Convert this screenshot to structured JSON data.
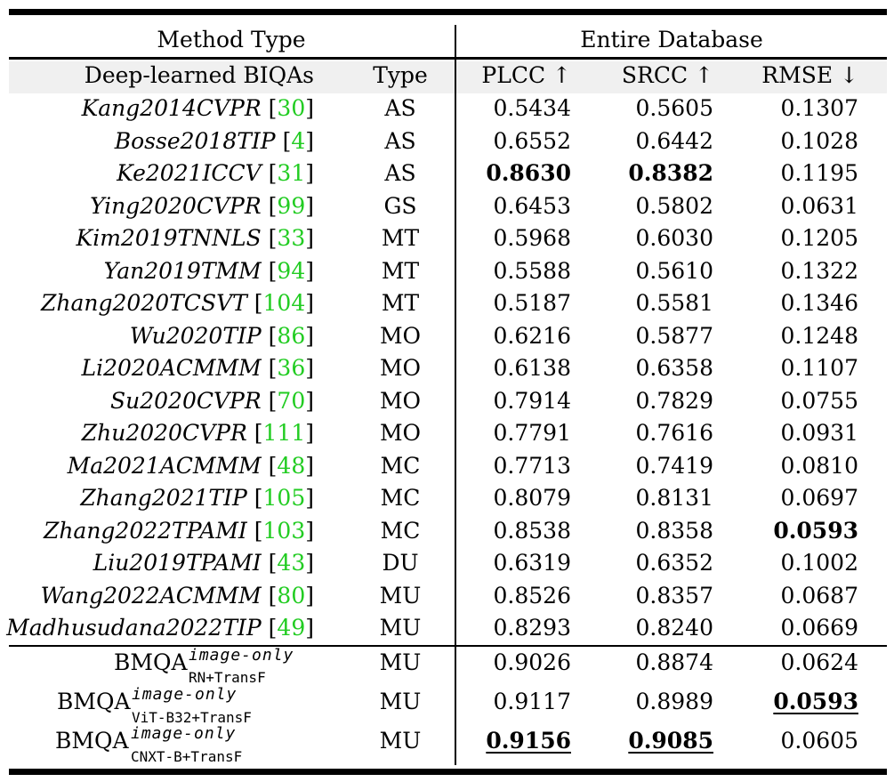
{
  "header": {
    "group_left": "Method Type",
    "group_right": "Entire Database",
    "col_method": "Deep-learned BIQAs",
    "col_type": "Type",
    "col_plcc": "PLCC ↑",
    "col_srcc": "SRCC ↑",
    "col_rmse": "RMSE ↓"
  },
  "rows": [
    {
      "name": "Kang2014CVPR",
      "cite": "30",
      "type": "AS",
      "plcc": "0.5434",
      "srcc": "0.5605",
      "rmse": "0.1307"
    },
    {
      "name": "Bosse2018TIP",
      "cite": "4",
      "type": "AS",
      "plcc": "0.6552",
      "srcc": "0.6442",
      "rmse": "0.1028"
    },
    {
      "name": "Ke2021ICCV",
      "cite": "31",
      "type": "AS",
      "plcc": "0.8630",
      "srcc": "0.8382",
      "rmse": "0.1195"
    },
    {
      "name": "Ying2020CVPR",
      "cite": "99",
      "type": "GS",
      "plcc": "0.6453",
      "srcc": "0.5802",
      "rmse": "0.0631"
    },
    {
      "name": "Kim2019TNNLS",
      "cite": "33",
      "type": "MT",
      "plcc": "0.5968",
      "srcc": "0.6030",
      "rmse": "0.1205"
    },
    {
      "name": "Yan2019TMM",
      "cite": "94",
      "type": "MT",
      "plcc": "0.5588",
      "srcc": "0.5610",
      "rmse": "0.1322"
    },
    {
      "name": "Zhang2020TCSVT",
      "cite": "104",
      "type": "MT",
      "plcc": "0.5187",
      "srcc": "0.5581",
      "rmse": "0.1346"
    },
    {
      "name": "Wu2020TIP",
      "cite": "86",
      "type": "MO",
      "plcc": "0.6216",
      "srcc": "0.5877",
      "rmse": "0.1248"
    },
    {
      "name": "Li2020ACMMM",
      "cite": "36",
      "type": "MO",
      "plcc": "0.6138",
      "srcc": "0.6358",
      "rmse": "0.1107"
    },
    {
      "name": "Su2020CVPR",
      "cite": "70",
      "type": "MO",
      "plcc": "0.7914",
      "srcc": "0.7829",
      "rmse": "0.0755"
    },
    {
      "name": "Zhu2020CVPR",
      "cite": "111",
      "type": "MO",
      "plcc": "0.7791",
      "srcc": "0.7616",
      "rmse": "0.0931"
    },
    {
      "name": "Ma2021ACMMM",
      "cite": "48",
      "type": "MC",
      "plcc": "0.7713",
      "srcc": "0.7419",
      "rmse": "0.0810"
    },
    {
      "name": "Zhang2021TIP",
      "cite": "105",
      "type": "MC",
      "plcc": "0.8079",
      "srcc": "0.8131",
      "rmse": "0.0697"
    },
    {
      "name": "Zhang2022TPAMI",
      "cite": "103",
      "type": "MC",
      "plcc": "0.8538",
      "srcc": "0.8358",
      "rmse": "0.0593"
    },
    {
      "name": "Liu2019TPAMI",
      "cite": "43",
      "type": "DU",
      "plcc": "0.6319",
      "srcc": "0.6352",
      "rmse": "0.1002"
    },
    {
      "name": "Wang2022ACMMM",
      "cite": "80",
      "type": "MU",
      "plcc": "0.8526",
      "srcc": "0.8357",
      "rmse": "0.0687"
    },
    {
      "name": "Madhusudana2022TIP",
      "cite": "49",
      "type": "MU",
      "plcc": "0.8293",
      "srcc": "0.8240",
      "rmse": "0.0669"
    }
  ],
  "bmqa_rows": [
    {
      "base": "BMQA",
      "sup": "image-only",
      "sub": "RN+TransF",
      "type": "MU",
      "plcc": "0.9026",
      "srcc": "0.8874",
      "rmse": "0.0624"
    },
    {
      "base": "BMQA",
      "sup": "image-only",
      "sub": "ViT-B32+TransF",
      "type": "MU",
      "plcc": "0.9117",
      "srcc": "0.8989",
      "rmse": "0.0593"
    },
    {
      "base": "BMQA",
      "sup": "image-only",
      "sub": "CNXT-B+TransF",
      "type": "MU",
      "plcc": "0.9156",
      "srcc": "0.9085",
      "rmse": "0.0605"
    }
  ]
}
